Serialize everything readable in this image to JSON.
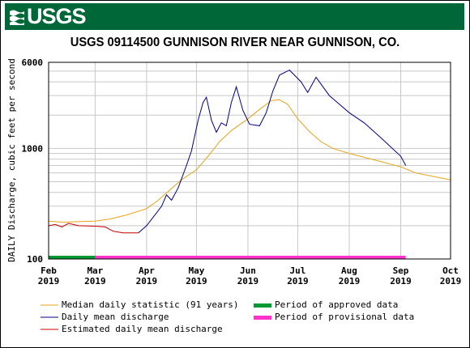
{
  "brand": {
    "logo_text": "USGS",
    "banner_color": "#006838"
  },
  "chart_data": {
    "type": "line",
    "title": "USGS 09114500 GUNNISON RIVER NEAR GUNNISON, CO.",
    "ylabel": "DAILY Discharge, cubic feet per second",
    "xlabel": "",
    "yscale": "log",
    "ylim": [
      100,
      6000
    ],
    "y_ticks": [
      "100",
      "1000",
      "6000"
    ],
    "x_ticks": [
      {
        "date": "2019-02-01",
        "label": [
          "Feb",
          "2019"
        ]
      },
      {
        "date": "2019-03-01",
        "label": [
          "Mar",
          "2019"
        ]
      },
      {
        "date": "2019-04-01",
        "label": [
          "Apr",
          "2019"
        ]
      },
      {
        "date": "2019-05-01",
        "label": [
          "May",
          "2019"
        ]
      },
      {
        "date": "2019-06-01",
        "label": [
          "Jun",
          "2019"
        ]
      },
      {
        "date": "2019-07-01",
        "label": [
          "Jul",
          "2019"
        ]
      },
      {
        "date": "2019-08-01",
        "label": [
          "Aug",
          "2019"
        ]
      },
      {
        "date": "2019-09-01",
        "label": [
          "Sep",
          "2019"
        ]
      },
      {
        "date": "2019-10-01",
        "label": [
          "Oct",
          "2019"
        ]
      }
    ],
    "grid": true,
    "series": [
      {
        "name": "Median daily statistic (91 years)",
        "color": "#e8a317",
        "points": [
          [
            "2019-02-01",
            220
          ],
          [
            "2019-02-10",
            215
          ],
          [
            "2019-02-20",
            218
          ],
          [
            "2019-03-01",
            220
          ],
          [
            "2019-03-10",
            230
          ],
          [
            "2019-03-20",
            250
          ],
          [
            "2019-04-01",
            285
          ],
          [
            "2019-04-08",
            340
          ],
          [
            "2019-04-15",
            420
          ],
          [
            "2019-04-22",
            520
          ],
          [
            "2019-05-01",
            640
          ],
          [
            "2019-05-08",
            850
          ],
          [
            "2019-05-15",
            1150
          ],
          [
            "2019-05-22",
            1450
          ],
          [
            "2019-06-01",
            1850
          ],
          [
            "2019-06-08",
            2250
          ],
          [
            "2019-06-15",
            2700
          ],
          [
            "2019-06-20",
            2750
          ],
          [
            "2019-06-25",
            2500
          ],
          [
            "2019-07-01",
            1850
          ],
          [
            "2019-07-08",
            1420
          ],
          [
            "2019-07-15",
            1150
          ],
          [
            "2019-07-22",
            1000
          ],
          [
            "2019-08-01",
            900
          ],
          [
            "2019-08-10",
            830
          ],
          [
            "2019-08-20",
            760
          ],
          [
            "2019-09-01",
            680
          ],
          [
            "2019-09-10",
            600
          ],
          [
            "2019-09-20",
            560
          ],
          [
            "2019-10-01",
            520
          ]
        ]
      },
      {
        "name": "Daily mean discharge",
        "color": "#00008b",
        "points": [
          [
            "2019-03-27",
            172
          ],
          [
            "2019-04-01",
            200
          ],
          [
            "2019-04-06",
            250
          ],
          [
            "2019-04-10",
            300
          ],
          [
            "2019-04-13",
            380
          ],
          [
            "2019-04-16",
            340
          ],
          [
            "2019-04-20",
            440
          ],
          [
            "2019-04-25",
            700
          ],
          [
            "2019-04-28",
            950
          ],
          [
            "2019-05-02",
            1800
          ],
          [
            "2019-05-05",
            2600
          ],
          [
            "2019-05-07",
            2900
          ],
          [
            "2019-05-10",
            1800
          ],
          [
            "2019-05-13",
            1400
          ],
          [
            "2019-05-16",
            1700
          ],
          [
            "2019-05-19",
            1600
          ],
          [
            "2019-05-22",
            2600
          ],
          [
            "2019-05-25",
            3600
          ],
          [
            "2019-05-29",
            2200
          ],
          [
            "2019-06-02",
            1650
          ],
          [
            "2019-06-08",
            1600
          ],
          [
            "2019-06-12",
            2100
          ],
          [
            "2019-06-16",
            3300
          ],
          [
            "2019-06-20",
            4600
          ],
          [
            "2019-06-26",
            5100
          ],
          [
            "2019-07-03",
            4000
          ],
          [
            "2019-07-07",
            3200
          ],
          [
            "2019-07-12",
            4400
          ],
          [
            "2019-07-20",
            3000
          ],
          [
            "2019-08-01",
            2100
          ],
          [
            "2019-08-10",
            1700
          ],
          [
            "2019-08-20",
            1250
          ],
          [
            "2019-09-01",
            850
          ],
          [
            "2019-09-04",
            700
          ]
        ]
      },
      {
        "name": "Estimated daily mean discharge",
        "color": "#cc0000",
        "points": [
          [
            "2019-02-01",
            200
          ],
          [
            "2019-02-05",
            205
          ],
          [
            "2019-02-09",
            195
          ],
          [
            "2019-02-13",
            210
          ],
          [
            "2019-02-19",
            200
          ],
          [
            "2019-03-01",
            198
          ],
          [
            "2019-03-07",
            195
          ],
          [
            "2019-03-12",
            178
          ],
          [
            "2019-03-18",
            172
          ],
          [
            "2019-03-27",
            172
          ]
        ]
      }
    ],
    "status_bars": [
      {
        "name": "Period of approved data",
        "color": "#009933",
        "from": "2019-02-01",
        "to": "2019-03-01"
      },
      {
        "name": "Period of provisional data",
        "color": "#ff33cc",
        "from": "2019-03-01",
        "to": "2019-09-04"
      }
    ],
    "legend_position": "bottom"
  }
}
